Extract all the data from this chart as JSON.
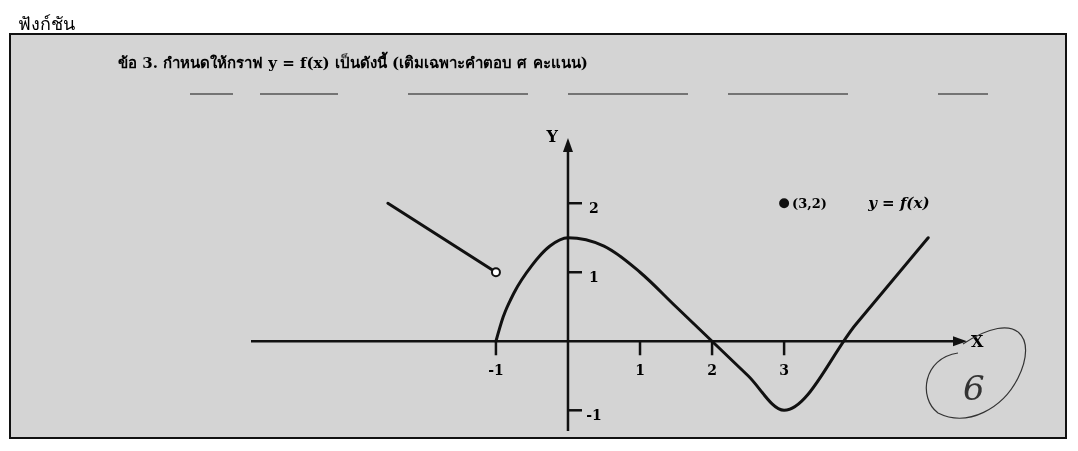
{
  "chart_data": {
    "type": "line",
    "title": "ข้อ 3. กำหนดให้กราฟ y = f(x) เป็นดังนี้ (เติมเฉพาะคำตอบ ศ คะแนน)",
    "xlabel": "X",
    "ylabel": "Y",
    "xlim": [
      -4.4,
      5.4
    ],
    "ylim": [
      -1.3,
      2.8
    ],
    "xticks": [
      -1,
      1,
      2,
      3
    ],
    "yticks": [
      -1,
      1,
      2
    ],
    "series": [
      {
        "name": "y = f(x)",
        "color": "#111111",
        "x": [
          -1,
          -0.9,
          -0.75,
          -0.5,
          -0.25,
          0,
          0.5,
          1,
          1.5,
          2,
          2.5,
          3,
          4,
          5
        ],
        "values": [
          0,
          0.35,
          0.7,
          1.1,
          1.38,
          1.5,
          1.38,
          1.0,
          0.5,
          0,
          -0.5,
          -1,
          0.25,
          1.5
        ]
      },
      {
        "type": "line",
        "color": "#111111",
        "x": [
          -2.5,
          -1
        ],
        "values": [
          2,
          1
        ]
      },
      {
        "type": "scatter",
        "marker": "circle",
        "color": "#ffffff",
        "x": [
          -1
        ],
        "values": [
          1
        ]
      },
      {
        "type": "scatter",
        "marker": "circle",
        "color": "#111111",
        "x": [
          3
        ],
        "values": [
          2
        ]
      }
    ],
    "annotations": [
      {
        "text": "(3,2)",
        "x": 3,
        "y": 2
      },
      "ฟังก์ชัน",
      "6"
    ]
  }
}
